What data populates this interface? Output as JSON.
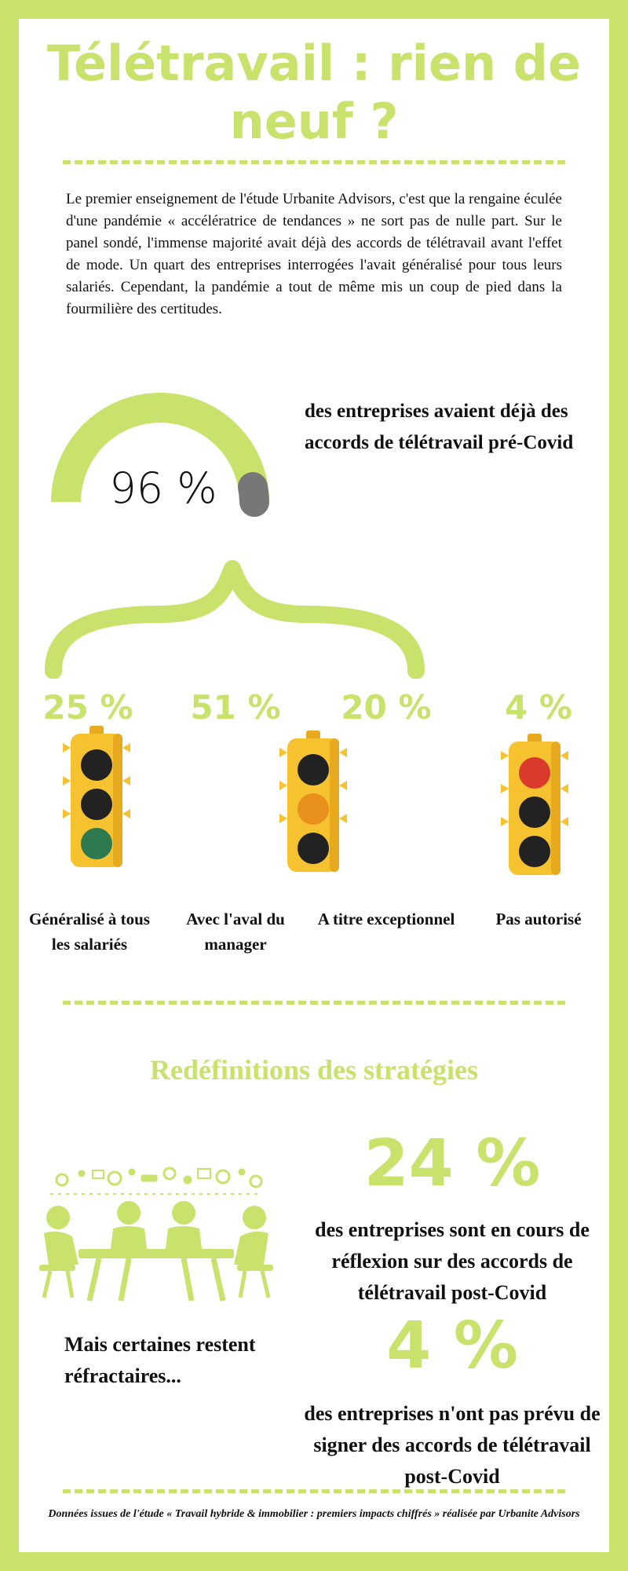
{
  "title": "Télétravail : rien de neuf ?",
  "intro": "Le premier enseignement de l'étude Urbanite Advisors, c'est que la rengaine éculée d'une pandémie « accélératrice de tendances » ne sort pas de nulle part. Sur le panel sondé, l'immense majorité avait déjà des accords de télétravail avant l'effet de mode. Un quart des entreprises interrogées l'avait généralisé pour tous leurs salariés. Cependant, la pandémie a tout de même mis un coup de pied dans la fourmilière des certitudes.",
  "gauge": {
    "value_label": "96 %",
    "fraction": 0.96,
    "color_fill": "#c9e26b",
    "color_rest": "#777777",
    "caption": "des entreprises avaient déjà des accords de télétravail pré-Covid"
  },
  "breakdown": [
    {
      "pct": "25 %",
      "label": "Généralisé à tous les salariés",
      "light": "green"
    },
    {
      "pct": "51 %",
      "label": "Avec l'aval du manager",
      "light": ""
    },
    {
      "pct": "20 %",
      "label": "A titre exceptionnel",
      "light": "orange"
    },
    {
      "pct": "4 %",
      "label": "Pas autorisé",
      "light": "red"
    }
  ],
  "section2": {
    "title": "Redéfinitions des stratégies",
    "stat1": {
      "value": "24 %",
      "text": "des entreprises sont en cours de réflexion sur des accords de télétravail post-Covid"
    },
    "aside": "Mais certaines restent réfractaires...",
    "stat2": {
      "value": "4 %",
      "text": "des entreprises n'ont pas prévu de signer des accords de télétravail post-Covid"
    }
  },
  "footer": "Données issues de l'étude « Travail hybride & immobilier : premiers impacts chiffrés » réalisée par Urbanite Advisors",
  "colors": {
    "accent": "#c9e26b",
    "traffic_body": "#f6c22f",
    "green": "#2d7a50",
    "orange": "#e8901b",
    "red": "#d93a2b",
    "off": "#222222"
  }
}
